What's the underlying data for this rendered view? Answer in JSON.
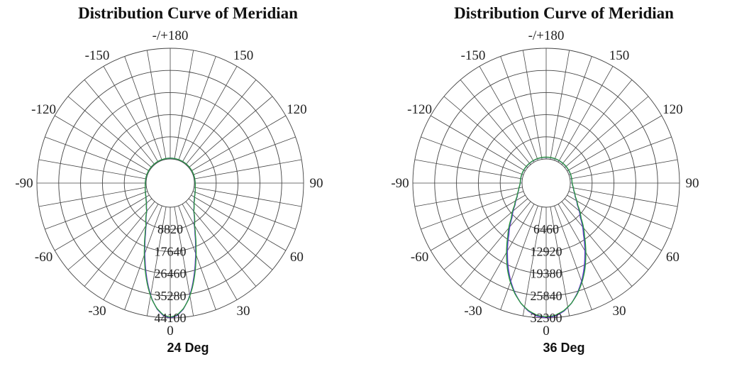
{
  "chart_data": [
    {
      "type": "polar",
      "title": "Distribution Curve of  Meridian",
      "caption": "24 Deg",
      "angle_ticks": [
        "0",
        "30",
        "60",
        "90",
        "120",
        "150",
        "-/+180",
        "-150",
        "-120",
        "-90",
        "-60",
        "-30"
      ],
      "radial_ticks": [
        8820,
        17640,
        26460,
        35280,
        44100
      ],
      "radial_max": 44100,
      "grid": true,
      "beam_angle_deg": 24,
      "series": [
        {
          "color": "#8b2fc9",
          "angles": [
            0,
            3,
            6,
            9,
            12,
            15,
            18,
            22,
            26,
            30,
            40,
            50,
            60,
            70,
            80,
            90
          ],
          "values": [
            44100,
            43300,
            40900,
            37200,
            32600,
            27700,
            23000,
            17500,
            13000,
            9600,
            4900,
            2700,
            1500,
            900,
            500,
            300
          ]
        },
        {
          "color": "#2c55c8",
          "angles": [
            0,
            3,
            6,
            9,
            12,
            15,
            18,
            22,
            26,
            30,
            40,
            50,
            60,
            70,
            80,
            90
          ],
          "values": [
            43900,
            43100,
            40800,
            37300,
            32900,
            28100,
            23400,
            17800,
            13300,
            9800,
            5000,
            2750,
            1550,
            920,
            520,
            310
          ]
        },
        {
          "color": "#2e9a3a",
          "angles": [
            0,
            3,
            6,
            9,
            12,
            15,
            18,
            22,
            26,
            30,
            40,
            50,
            60,
            70,
            80,
            90
          ],
          "values": [
            43800,
            43000,
            40700,
            37400,
            33100,
            28400,
            23700,
            18100,
            13500,
            9900,
            5050,
            2800,
            1580,
            940,
            530,
            320
          ]
        }
      ]
    },
    {
      "type": "polar",
      "title": "Distribution Curve of  Meridian",
      "caption": "36 Deg",
      "angle_ticks": [
        "0",
        "30",
        "60",
        "90",
        "120",
        "150",
        "-/+180",
        "-150",
        "-120",
        "-90",
        "-60",
        "-30"
      ],
      "radial_ticks": [
        6460,
        12920,
        19380,
        25840,
        32300
      ],
      "radial_max": 32300,
      "grid": true,
      "beam_angle_deg": 36,
      "series": [
        {
          "color": "#8b2fc9",
          "angles": [
            0,
            4,
            8,
            12,
            16,
            20,
            24,
            28,
            32,
            36,
            45,
            55,
            65,
            75,
            85,
            90
          ],
          "values": [
            32300,
            31900,
            30700,
            28800,
            26300,
            23400,
            20300,
            17200,
            14300,
            11600,
            7100,
            4100,
            2300,
            1300,
            700,
            500
          ]
        },
        {
          "color": "#2c55c8",
          "angles": [
            0,
            4,
            8,
            12,
            16,
            20,
            24,
            28,
            32,
            36,
            45,
            55,
            65,
            75,
            85,
            90
          ],
          "values": [
            32100,
            31700,
            30600,
            28800,
            26400,
            23600,
            20600,
            17500,
            14600,
            11900,
            7300,
            4200,
            2350,
            1330,
            720,
            520
          ]
        },
        {
          "color": "#2e9a3a",
          "angles": [
            0,
            4,
            8,
            12,
            16,
            20,
            24,
            28,
            32,
            36,
            45,
            55,
            65,
            75,
            85,
            90
          ],
          "values": [
            32000,
            31600,
            30500,
            28800,
            26500,
            23800,
            20900,
            17800,
            14900,
            12200,
            7500,
            4300,
            2400,
            1360,
            740,
            540
          ]
        }
      ]
    }
  ]
}
